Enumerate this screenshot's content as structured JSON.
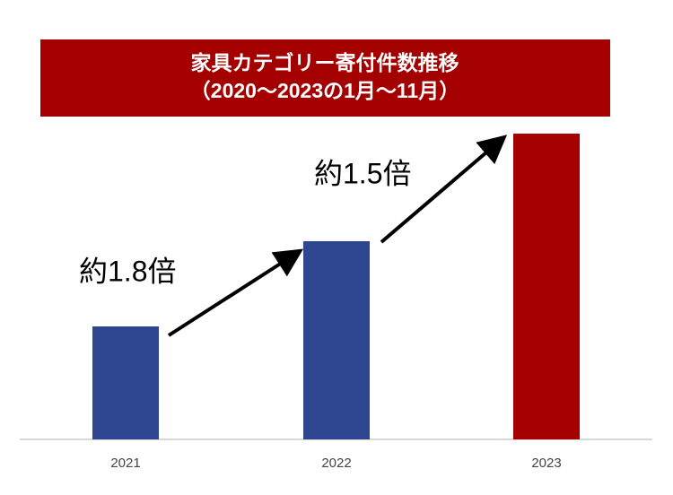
{
  "chart_data": {
    "type": "bar",
    "title": "家具カテゴリー寄付件数推移",
    "subtitle": "（2020～2023の1月～11月）",
    "categories": [
      "2021",
      "2022",
      "2023"
    ],
    "values": [
      126,
      221,
      341
    ],
    "colors": [
      "#2e4590",
      "#2e4590",
      "#a50000"
    ],
    "ylim": [
      0,
      341
    ],
    "annotations": [
      "約1.8倍",
      "約1.5倍"
    ]
  }
}
